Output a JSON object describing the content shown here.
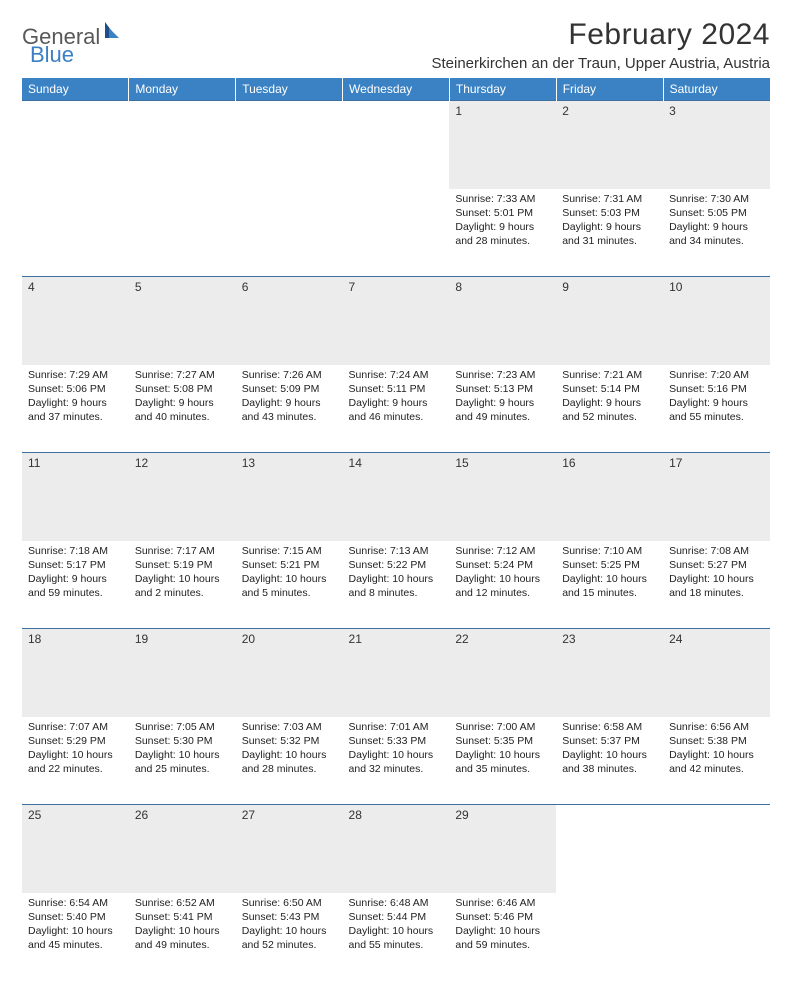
{
  "brand": {
    "part1": "General",
    "part2": "Blue"
  },
  "title": "February 2024",
  "location": "Steinerkirchen an der Traun, Upper Austria, Austria",
  "colors": {
    "header_bg": "#3b82c4",
    "header_text": "#ffffff",
    "daynum_bg": "#ececec",
    "row_border": "#3b6fa0",
    "logo_gray": "#595959",
    "logo_blue": "#3b7fc4",
    "page_bg": "#ffffff",
    "body_text": "#222222"
  },
  "typography": {
    "title_fontsize": 30,
    "location_fontsize": 15,
    "weekday_fontsize": 12,
    "daynum_fontsize": 12,
    "detail_fontsize": 10.5
  },
  "weekdays": [
    "Sunday",
    "Monday",
    "Tuesday",
    "Wednesday",
    "Thursday",
    "Friday",
    "Saturday"
  ],
  "weeks": [
    [
      null,
      null,
      null,
      null,
      {
        "day": "1",
        "sunrise": "Sunrise: 7:33 AM",
        "sunset": "Sunset: 5:01 PM",
        "dl1": "Daylight: 9 hours",
        "dl2": "and 28 minutes."
      },
      {
        "day": "2",
        "sunrise": "Sunrise: 7:31 AM",
        "sunset": "Sunset: 5:03 PM",
        "dl1": "Daylight: 9 hours",
        "dl2": "and 31 minutes."
      },
      {
        "day": "3",
        "sunrise": "Sunrise: 7:30 AM",
        "sunset": "Sunset: 5:05 PM",
        "dl1": "Daylight: 9 hours",
        "dl2": "and 34 minutes."
      }
    ],
    [
      {
        "day": "4",
        "sunrise": "Sunrise: 7:29 AM",
        "sunset": "Sunset: 5:06 PM",
        "dl1": "Daylight: 9 hours",
        "dl2": "and 37 minutes."
      },
      {
        "day": "5",
        "sunrise": "Sunrise: 7:27 AM",
        "sunset": "Sunset: 5:08 PM",
        "dl1": "Daylight: 9 hours",
        "dl2": "and 40 minutes."
      },
      {
        "day": "6",
        "sunrise": "Sunrise: 7:26 AM",
        "sunset": "Sunset: 5:09 PM",
        "dl1": "Daylight: 9 hours",
        "dl2": "and 43 minutes."
      },
      {
        "day": "7",
        "sunrise": "Sunrise: 7:24 AM",
        "sunset": "Sunset: 5:11 PM",
        "dl1": "Daylight: 9 hours",
        "dl2": "and 46 minutes."
      },
      {
        "day": "8",
        "sunrise": "Sunrise: 7:23 AM",
        "sunset": "Sunset: 5:13 PM",
        "dl1": "Daylight: 9 hours",
        "dl2": "and 49 minutes."
      },
      {
        "day": "9",
        "sunrise": "Sunrise: 7:21 AM",
        "sunset": "Sunset: 5:14 PM",
        "dl1": "Daylight: 9 hours",
        "dl2": "and 52 minutes."
      },
      {
        "day": "10",
        "sunrise": "Sunrise: 7:20 AM",
        "sunset": "Sunset: 5:16 PM",
        "dl1": "Daylight: 9 hours",
        "dl2": "and 55 minutes."
      }
    ],
    [
      {
        "day": "11",
        "sunrise": "Sunrise: 7:18 AM",
        "sunset": "Sunset: 5:17 PM",
        "dl1": "Daylight: 9 hours",
        "dl2": "and 59 minutes."
      },
      {
        "day": "12",
        "sunrise": "Sunrise: 7:17 AM",
        "sunset": "Sunset: 5:19 PM",
        "dl1": "Daylight: 10 hours",
        "dl2": "and 2 minutes."
      },
      {
        "day": "13",
        "sunrise": "Sunrise: 7:15 AM",
        "sunset": "Sunset: 5:21 PM",
        "dl1": "Daylight: 10 hours",
        "dl2": "and 5 minutes."
      },
      {
        "day": "14",
        "sunrise": "Sunrise: 7:13 AM",
        "sunset": "Sunset: 5:22 PM",
        "dl1": "Daylight: 10 hours",
        "dl2": "and 8 minutes."
      },
      {
        "day": "15",
        "sunrise": "Sunrise: 7:12 AM",
        "sunset": "Sunset: 5:24 PM",
        "dl1": "Daylight: 10 hours",
        "dl2": "and 12 minutes."
      },
      {
        "day": "16",
        "sunrise": "Sunrise: 7:10 AM",
        "sunset": "Sunset: 5:25 PM",
        "dl1": "Daylight: 10 hours",
        "dl2": "and 15 minutes."
      },
      {
        "day": "17",
        "sunrise": "Sunrise: 7:08 AM",
        "sunset": "Sunset: 5:27 PM",
        "dl1": "Daylight: 10 hours",
        "dl2": "and 18 minutes."
      }
    ],
    [
      {
        "day": "18",
        "sunrise": "Sunrise: 7:07 AM",
        "sunset": "Sunset: 5:29 PM",
        "dl1": "Daylight: 10 hours",
        "dl2": "and 22 minutes."
      },
      {
        "day": "19",
        "sunrise": "Sunrise: 7:05 AM",
        "sunset": "Sunset: 5:30 PM",
        "dl1": "Daylight: 10 hours",
        "dl2": "and 25 minutes."
      },
      {
        "day": "20",
        "sunrise": "Sunrise: 7:03 AM",
        "sunset": "Sunset: 5:32 PM",
        "dl1": "Daylight: 10 hours",
        "dl2": "and 28 minutes."
      },
      {
        "day": "21",
        "sunrise": "Sunrise: 7:01 AM",
        "sunset": "Sunset: 5:33 PM",
        "dl1": "Daylight: 10 hours",
        "dl2": "and 32 minutes."
      },
      {
        "day": "22",
        "sunrise": "Sunrise: 7:00 AM",
        "sunset": "Sunset: 5:35 PM",
        "dl1": "Daylight: 10 hours",
        "dl2": "and 35 minutes."
      },
      {
        "day": "23",
        "sunrise": "Sunrise: 6:58 AM",
        "sunset": "Sunset: 5:37 PM",
        "dl1": "Daylight: 10 hours",
        "dl2": "and 38 minutes."
      },
      {
        "day": "24",
        "sunrise": "Sunrise: 6:56 AM",
        "sunset": "Sunset: 5:38 PM",
        "dl1": "Daylight: 10 hours",
        "dl2": "and 42 minutes."
      }
    ],
    [
      {
        "day": "25",
        "sunrise": "Sunrise: 6:54 AM",
        "sunset": "Sunset: 5:40 PM",
        "dl1": "Daylight: 10 hours",
        "dl2": "and 45 minutes."
      },
      {
        "day": "26",
        "sunrise": "Sunrise: 6:52 AM",
        "sunset": "Sunset: 5:41 PM",
        "dl1": "Daylight: 10 hours",
        "dl2": "and 49 minutes."
      },
      {
        "day": "27",
        "sunrise": "Sunrise: 6:50 AM",
        "sunset": "Sunset: 5:43 PM",
        "dl1": "Daylight: 10 hours",
        "dl2": "and 52 minutes."
      },
      {
        "day": "28",
        "sunrise": "Sunrise: 6:48 AM",
        "sunset": "Sunset: 5:44 PM",
        "dl1": "Daylight: 10 hours",
        "dl2": "and 55 minutes."
      },
      {
        "day": "29",
        "sunrise": "Sunrise: 6:46 AM",
        "sunset": "Sunset: 5:46 PM",
        "dl1": "Daylight: 10 hours",
        "dl2": "and 59 minutes."
      },
      null,
      null
    ]
  ]
}
